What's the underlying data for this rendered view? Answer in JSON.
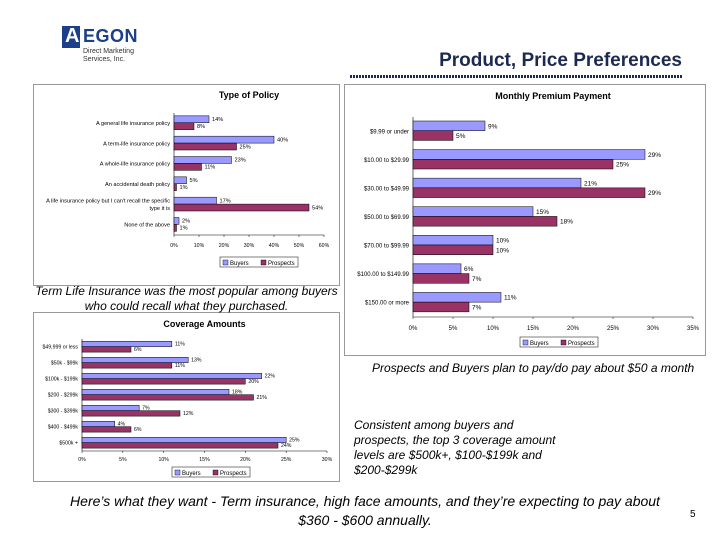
{
  "logo": {
    "brand": "AEGON",
    "mark": "A",
    "brand_rest": "EGON",
    "sub_line1": "Direct Marketing",
    "sub_line2": "Services, Inc."
  },
  "slide_title": "Product, Price Preferences",
  "colors": {
    "buyers": "#9999ff",
    "prospects": "#993366",
    "title": "#1c2a52"
  },
  "notes": {
    "term_life": "Term Life Insurance was the most popular among buyers who could recall what they purchased.",
    "premium": "Prospects and Buyers plan to pay/do pay about $50 a month",
    "coverage": "Consistent among buyers and prospects, the top 3 coverage amount levels are $500k+, $100-$199k and $200-$299k"
  },
  "footer": "Here’s what they want - Term insurance, high face amounts, and they’re expecting to pay about $360 - $600 annually.",
  "page_number": "5",
  "chart_data": [
    {
      "id": "policy",
      "type": "bar",
      "orientation": "horizontal",
      "title": "Type of Policy",
      "categories": [
        "A general life insurance policy",
        "A term-life insurance policy",
        "A whole-life insurance policy",
        "An accidental death policy",
        "A life insurance policy but I can't recall the specific type it is",
        "None of the above"
      ],
      "series": [
        {
          "name": "Buyers",
          "values": [
            14,
            40,
            23,
            5,
            17,
            2
          ]
        },
        {
          "name": "Prospects",
          "values": [
            8,
            25,
            11,
            1,
            54,
            1
          ]
        }
      ],
      "xlim": [
        0,
        60
      ],
      "ticks": [
        "0%",
        "10%",
        "20%",
        "30%",
        "40%",
        "50%",
        "60%"
      ],
      "legend": "bottom"
    },
    {
      "id": "premium",
      "type": "bar",
      "orientation": "horizontal",
      "title": "Monthly Premium Payment",
      "categories": [
        "$9.99 or under",
        "$10.00 to $29.99",
        "$30.00 to $49.99",
        "$50.00 to $69.99",
        "$70.00 to $99.99",
        "$100.00 to $149.99",
        "$150.00 or more"
      ],
      "series": [
        {
          "name": "Buyers",
          "values": [
            9,
            29,
            21,
            15,
            10,
            6,
            11
          ]
        },
        {
          "name": "Prospects",
          "values": [
            5,
            25,
            29,
            18,
            10,
            7,
            7
          ]
        }
      ],
      "xlim": [
        0,
        35
      ],
      "ticks": [
        "0%",
        "5%",
        "10%",
        "15%",
        "20%",
        "25%",
        "30%",
        "35%"
      ],
      "legend": "bottom-right"
    },
    {
      "id": "coverage",
      "type": "bar",
      "orientation": "horizontal",
      "title": "Coverage Amounts",
      "categories": [
        "$49,999 or less",
        "$50k - $99k",
        "$100k - $199k",
        "$200 - $299k",
        "$300 - $399k",
        "$400 - $499k",
        "$500k +"
      ],
      "series": [
        {
          "name": "Buyers",
          "values": [
            11,
            13,
            22,
            18,
            7,
            4,
            25
          ]
        },
        {
          "name": "Prospects",
          "values": [
            6,
            11,
            20,
            21,
            12,
            6,
            24
          ]
        }
      ],
      "xlim": [
        0,
        30
      ],
      "ticks": [
        "0%",
        "5%",
        "10%",
        "15%",
        "20%",
        "25%",
        "30%"
      ],
      "legend": "bottom"
    }
  ]
}
